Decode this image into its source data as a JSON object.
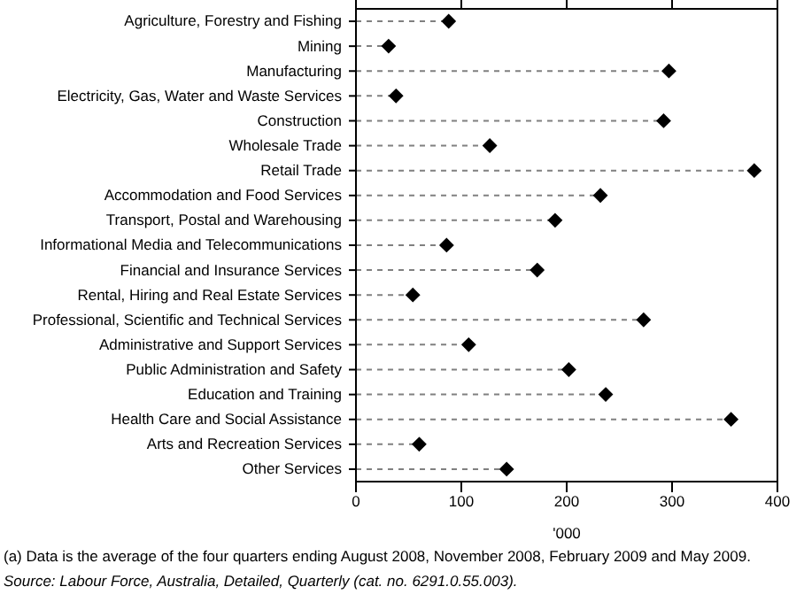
{
  "chart_data": {
    "type": "lollipop",
    "orientation": "horizontal",
    "categories": [
      "Agriculture, Forestry and Fishing",
      "Mining",
      "Manufacturing",
      "Electricity, Gas, Water and Waste Services",
      "Construction",
      "Wholesale Trade",
      "Retail Trade",
      "Accommodation and Food Services",
      "Transport, Postal and Warehousing",
      "Informational Media and Telecommunications",
      "Financial and Insurance Services",
      "Rental, Hiring and Real Estate Services",
      "Professional, Scientific and Technical Services",
      "Administrative and Support Services",
      "Public Administration and Safety",
      "Education and Training",
      "Health Care and Social Assistance",
      "Arts and Recreation Services",
      "Other Services"
    ],
    "values": [
      88,
      31,
      297,
      38,
      292,
      127,
      378,
      232,
      189,
      86,
      172,
      54,
      273,
      107,
      202,
      237,
      356,
      60,
      143
    ],
    "color": "#000000",
    "marker": "diamond",
    "line_style": "dashed",
    "xlim": [
      0,
      400
    ],
    "xticks": [
      0,
      100,
      200,
      300,
      400
    ],
    "xlabel": "'000",
    "annotations": [
      "(a) Data is the average of the four quarters ending August 2008, November 2008, February 2009 and May 2009.",
      "Source: Labour Force, Australia, Detailed, Quarterly (cat. no. 6291.0.55.003)."
    ]
  }
}
